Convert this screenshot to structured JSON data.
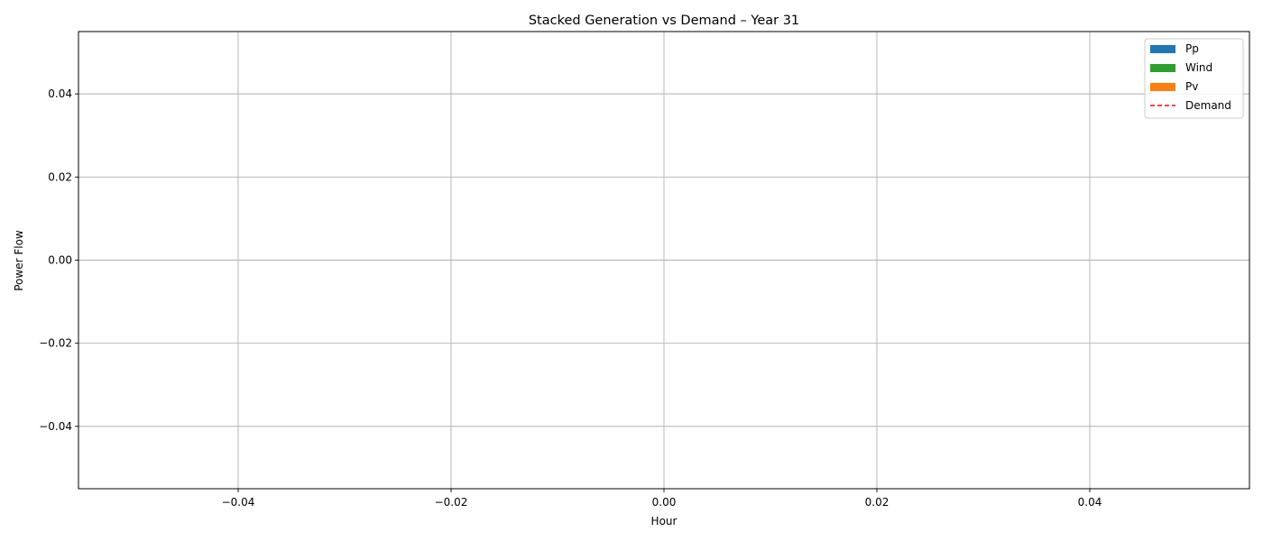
{
  "chart_data": {
    "type": "area",
    "title": "Stacked Generation vs Demand – Year 31",
    "xlabel": "Hour",
    "ylabel": "Power Flow",
    "xlim": [
      -0.055,
      0.055
    ],
    "ylim": [
      -0.055,
      0.055
    ],
    "x_ticks": [
      -0.04,
      -0.02,
      0.0,
      0.02,
      0.04
    ],
    "x_tick_labels": [
      "−0.04",
      "−0.02",
      "0.00",
      "0.02",
      "0.04"
    ],
    "y_ticks": [
      0.04,
      0.02,
      0.0,
      -0.02,
      -0.04
    ],
    "y_tick_labels": [
      "0.04",
      "0.02",
      "0.00",
      "−0.02",
      "−0.04"
    ],
    "grid": true,
    "legend_position": "top-right",
    "x": [],
    "series": [
      {
        "name": "Pp",
        "kind": "stacked-area",
        "color": "#1f77b4",
        "values": []
      },
      {
        "name": "Wind",
        "kind": "stacked-area",
        "color": "#2ca02c",
        "values": []
      },
      {
        "name": "Pv",
        "kind": "stacked-area",
        "color": "#ff7f0e",
        "values": []
      },
      {
        "name": "Demand",
        "kind": "dashed-line",
        "color": "#ff0000",
        "values": []
      }
    ]
  }
}
